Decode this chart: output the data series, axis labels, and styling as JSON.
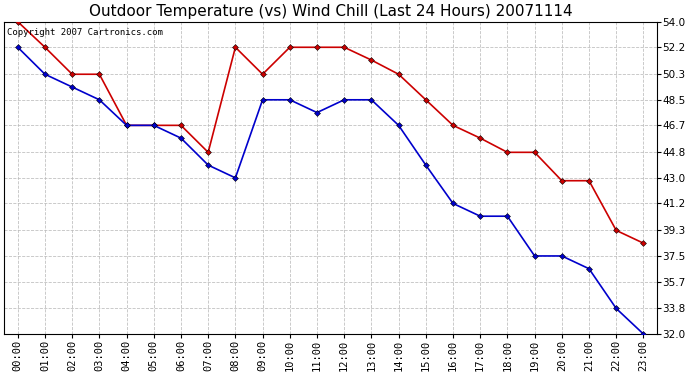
{
  "title": "Outdoor Temperature (vs) Wind Chill (Last 24 Hours) 20071114",
  "copyright_text": "Copyright 2007 Cartronics.com",
  "hours": [
    "00:00",
    "01:00",
    "02:00",
    "03:00",
    "04:00",
    "05:00",
    "06:00",
    "07:00",
    "08:00",
    "09:00",
    "10:00",
    "11:00",
    "12:00",
    "13:00",
    "14:00",
    "15:00",
    "16:00",
    "17:00",
    "18:00",
    "19:00",
    "20:00",
    "21:00",
    "22:00",
    "23:00"
  ],
  "temp_red": [
    54.0,
    52.2,
    50.3,
    50.3,
    46.7,
    46.7,
    46.7,
    44.8,
    52.2,
    50.3,
    52.2,
    52.2,
    52.2,
    51.3,
    50.3,
    48.5,
    46.7,
    45.8,
    44.8,
    44.8,
    42.8,
    42.8,
    39.3,
    38.4
  ],
  "wind_chill_blue": [
    52.2,
    50.3,
    49.4,
    48.5,
    46.7,
    46.7,
    45.8,
    43.9,
    43.0,
    48.5,
    48.5,
    47.6,
    48.5,
    48.5,
    46.7,
    43.9,
    41.2,
    40.3,
    40.3,
    37.5,
    37.5,
    36.6,
    33.8,
    32.0
  ],
  "ylim_min": 32.0,
  "ylim_max": 54.0,
  "yticks": [
    32.0,
    33.8,
    35.7,
    37.5,
    39.3,
    41.2,
    43.0,
    44.8,
    46.7,
    48.5,
    50.3,
    52.2,
    54.0
  ],
  "red_color": "#cc0000",
  "blue_color": "#0000cc",
  "background_color": "#ffffff",
  "grid_color": "#bbbbbb",
  "title_fontsize": 11,
  "tick_fontsize": 7.5
}
